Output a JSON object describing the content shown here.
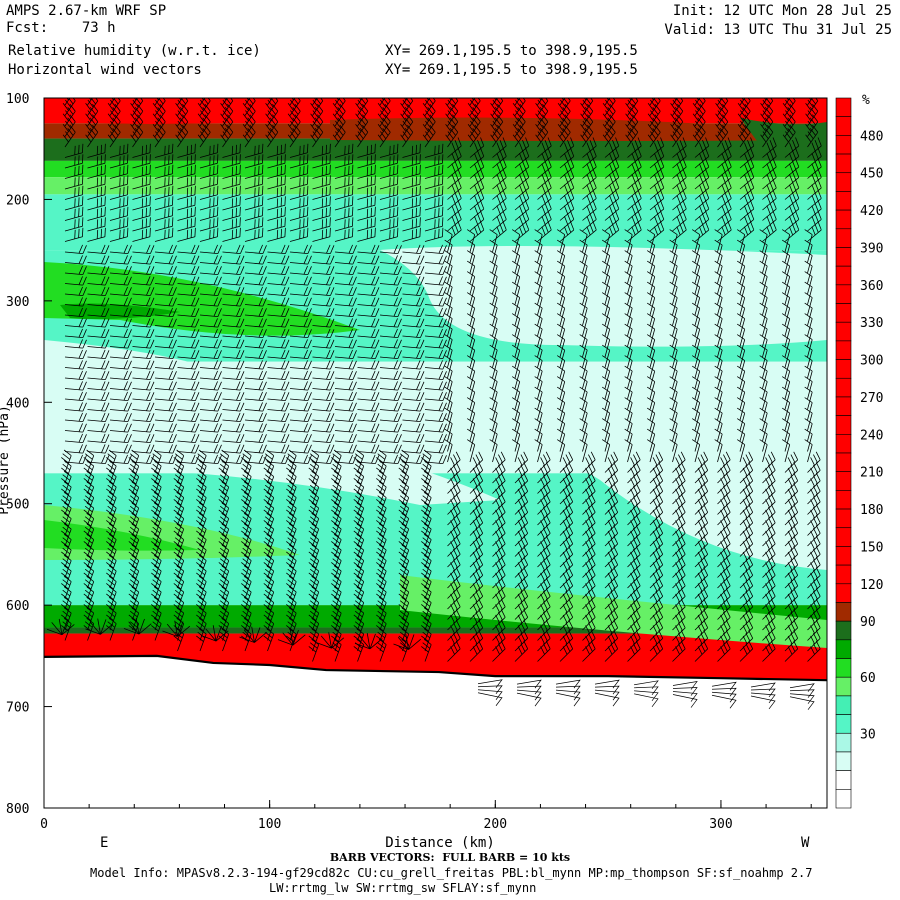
{
  "header": {
    "model": "AMPS 2.67-km WRF SP",
    "fcst": "Fcst:    73 h",
    "field1": "Relative humidity (w.r.t. ice)",
    "field2": "Horizontal wind vectors",
    "xy1": "XY= 269.1,195.5 to 398.9,195.5",
    "xy2": "XY= 269.1,195.5 to 398.9,195.5",
    "init": "Init: 12 UTC Mon 28 Jul 25",
    "valid": "Valid: 13 UTC Thu 31 Jul 25"
  },
  "footer": {
    "barb_note": "BARB VECTORS:  FULL BARB = 10 kts",
    "model_info": "Model Info: MPASv8.2.3-194-gf29cd82c CU:cu_grell_freitas PBL:bl_mynn MP:mp_thompson SF:sf_noahmp 2.7",
    "model_info2": "LW:rrtmg_lw SW:rrtmg_sw SFLAY:sf_mynn"
  },
  "chart_data": {
    "type": "heatmap",
    "title": "Relative humidity (w.r.t. ice)",
    "xlabel": "Distance (km)",
    "ylabel": "Pressure (hPa)",
    "xlim": [
      0,
      347
    ],
    "ylim": [
      800,
      100
    ],
    "x_ticks": [
      "0",
      "100",
      "200",
      "300"
    ],
    "x_tick_values": [
      0,
      100,
      200,
      300
    ],
    "y_ticks": [
      "100",
      "200",
      "300",
      "400",
      "500",
      "600",
      "700",
      "800"
    ],
    "y_tick_values": [
      100,
      200,
      300,
      400,
      500,
      600,
      700,
      800
    ],
    "direction_labels": {
      "left": "E",
      "right": "W"
    },
    "colorbar": {
      "unit": "%",
      "labels": [
        "480",
        "450",
        "420",
        "390",
        "360",
        "330",
        "300",
        "270",
        "240",
        "210",
        "180",
        "150",
        "120",
        "90",
        "60",
        "30"
      ],
      "label_values": [
        480,
        450,
        420,
        390,
        360,
        330,
        300,
        270,
        240,
        210,
        180,
        150,
        120,
        90,
        60,
        30
      ],
      "levels_top_to_bottom": [
        510,
        495,
        480,
        465,
        450,
        435,
        420,
        405,
        390,
        375,
        360,
        345,
        330,
        315,
        300,
        285,
        270,
        255,
        240,
        225,
        210,
        195,
        180,
        165,
        150,
        135,
        120,
        105,
        90,
        80,
        70,
        60,
        50,
        40,
        30,
        20,
        10,
        0
      ],
      "colors_top_to_bottom": [
        "#ff0000",
        "#ff0000",
        "#ff0000",
        "#ff0000",
        "#ff0000",
        "#ff0000",
        "#ff0000",
        "#ff0000",
        "#ff0000",
        "#ff0000",
        "#ff0000",
        "#ff0000",
        "#ff0000",
        "#ff0000",
        "#ff0000",
        "#ff0000",
        "#ff0000",
        "#ff0000",
        "#ff0000",
        "#ff0000",
        "#ff0000",
        "#ff0000",
        "#ff0000",
        "#ff0000",
        "#ff0000",
        "#ff0000",
        "#ff0000",
        "#a02a00",
        "#1c6e1c",
        "#00aa00",
        "#22dd22",
        "#66f066",
        "#44efb4",
        "#55f5c6",
        "#aaf8e6",
        "#d8fdf4",
        "#ffffff",
        "#ffffff"
      ]
    },
    "rh_bands": [
      {
        "name": "red-top",
        "p_top": 100,
        "p_bot": 125,
        "rh": 150
      },
      {
        "name": "brown-top",
        "p_top": 125,
        "p_bot": 140,
        "rh": 110
      },
      {
        "name": "darkgreen",
        "p_top": 140,
        "p_bot": 162,
        "rh": 95
      },
      {
        "name": "green",
        "p_top": 162,
        "p_bot": 178,
        "rh": 70
      },
      {
        "name": "lightgreen",
        "p_top": 178,
        "p_bot": 195,
        "rh": 62
      },
      {
        "name": "mint",
        "p_top": 195,
        "p_bot": 250,
        "rh": 45
      },
      {
        "name": "aqua",
        "p_top": 250,
        "p_bot": 360,
        "rh": 40
      },
      {
        "name": "pale",
        "p_top": 360,
        "p_bot": 470,
        "rh": 25
      },
      {
        "name": "aqua-low",
        "p_top": 470,
        "p_bot": 600,
        "rh": 40
      },
      {
        "name": "green-low",
        "p_top": 600,
        "p_bot": 622,
        "rh": 80
      },
      {
        "name": "darkgreen-low",
        "p_top": 622,
        "p_bot": 628,
        "rh": 95
      },
      {
        "name": "red-low",
        "p_top": 628,
        "p_bot": 675,
        "rh": 150
      }
    ],
    "terrain_pressure": [
      {
        "x": 0,
        "p": 651
      },
      {
        "x": 50,
        "p": 650
      },
      {
        "x": 75,
        "p": 657
      },
      {
        "x": 100,
        "p": 659
      },
      {
        "x": 125,
        "p": 664
      },
      {
        "x": 175,
        "p": 666
      },
      {
        "x": 200,
        "p": 670
      },
      {
        "x": 250,
        "p": 670
      },
      {
        "x": 300,
        "p": 672
      },
      {
        "x": 347,
        "p": 674
      }
    ],
    "barbs": {
      "full_barb_kts": 10
    }
  }
}
